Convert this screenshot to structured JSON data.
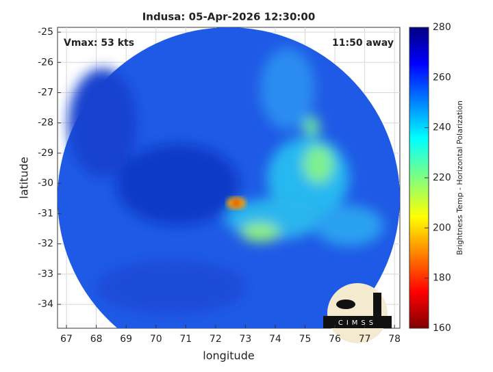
{
  "chart_data": {
    "type": "heatmap",
    "title": "Indusa: 05-Apr-2026 12:30:00",
    "xlabel": "longitude",
    "ylabel": "latitude",
    "annotations": [
      "Vmax: 53 kts",
      "11:50 away"
    ],
    "colorbar_label": "Brightness Temp - Horizontal Polarization",
    "colormap": "jet",
    "xlim": [
      66.7,
      78.18
    ],
    "xticks": [
      67,
      68,
      69,
      70,
      71,
      72,
      73,
      74,
      75,
      76,
      77,
      78
    ],
    "ylim": [
      -34.79,
      -24.84
    ],
    "yticks": [
      -25,
      -26,
      -27,
      -28,
      -29,
      -30,
      -31,
      -32,
      -33,
      -34
    ],
    "clim": [
      160,
      280
    ],
    "cticks": [
      160,
      180,
      200,
      220,
      240,
      260,
      280
    ],
    "grid": true,
    "logo_text": "CIMSS"
  }
}
